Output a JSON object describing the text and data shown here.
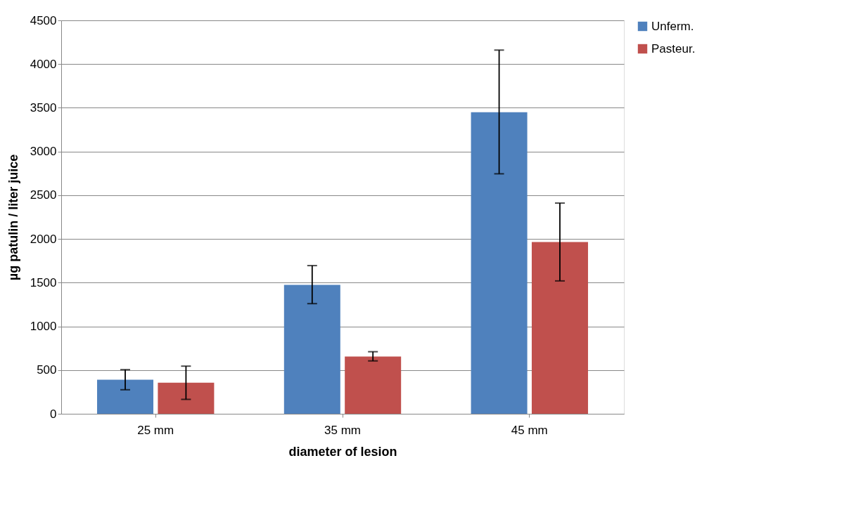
{
  "chart_data": {
    "type": "bar",
    "xlabel": "diameter of lesion",
    "ylabel": "µg patulin / liter juice",
    "categories": [
      "25 mm",
      "35 mm",
      "45 mm"
    ],
    "series": [
      {
        "name": "Unferm.",
        "color": "#4f81bd",
        "values": [
          390,
          1475,
          3450
        ],
        "errors": [
          [
            275,
            505
          ],
          [
            1260,
            1695
          ],
          [
            2745,
            4160
          ]
        ]
      },
      {
        "name": "Pasteur.",
        "color": "#c0504d",
        "values": [
          355,
          655,
          1965
        ],
        "errors": [
          [
            165,
            545
          ],
          [
            605,
            710
          ],
          [
            1520,
            2410
          ]
        ]
      }
    ],
    "ylim": [
      0,
      4500
    ],
    "yticks": [
      0,
      500,
      1000,
      1500,
      2000,
      2500,
      3000,
      3500,
      4000,
      4500
    ],
    "grid": "y",
    "legend": "right"
  }
}
